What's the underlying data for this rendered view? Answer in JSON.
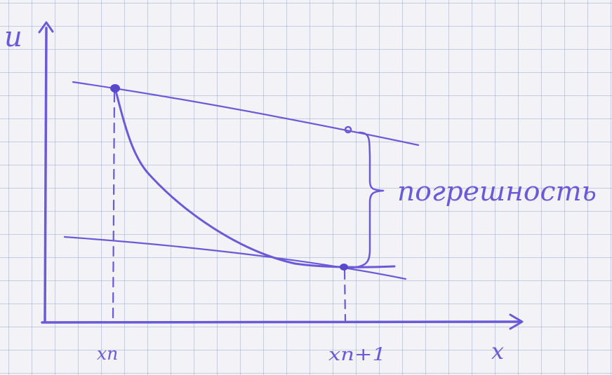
{
  "axes": {
    "y_label": "u",
    "x_label": "x"
  },
  "ticks": {
    "x_n": "xn",
    "x_n_plus_1": "xn+1"
  },
  "annotation": {
    "brace_label": "погрешность"
  },
  "colors": {
    "ink": "#6a5ad8",
    "grid": "#8ca0cd",
    "paper": "#f3f2f6"
  }
}
